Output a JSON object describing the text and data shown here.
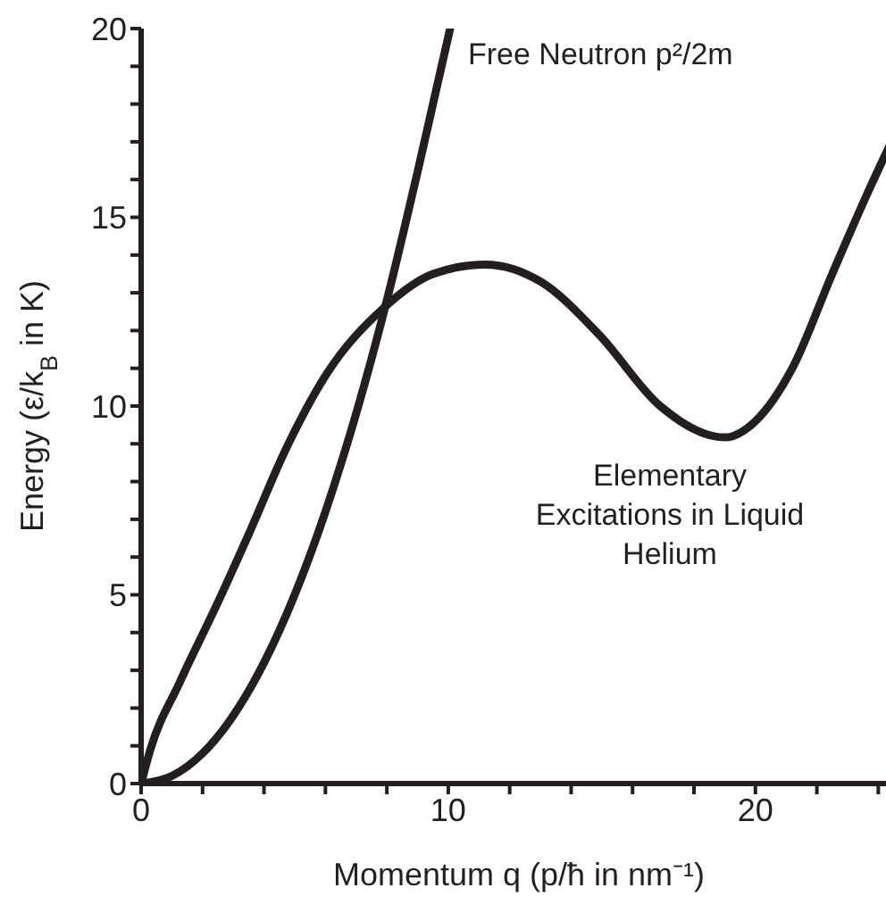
{
  "chart_data": {
    "type": "line",
    "xlabel": "Momentum q (p/ħ in nm⁻¹)",
    "ylabel": "Energy (ε/k$_{B}$ in K)",
    "xlim": [
      0,
      24.6
    ],
    "ylim": [
      0,
      20
    ],
    "xticks": [
      0,
      {
        "value": 2,
        "label": null
      },
      {
        "value": 4,
        "label": null
      },
      {
        "value": 6,
        "label": null
      },
      {
        "value": 8,
        "label": null
      },
      10,
      {
        "value": 12,
        "label": null
      },
      {
        "value": 14,
        "label": null
      },
      {
        "value": 16,
        "label": null
      },
      {
        "value": 18,
        "label": null
      },
      20,
      {
        "value": 22,
        "label": null
      },
      {
        "value": 24,
        "label": null
      }
    ],
    "yticks": [
      0,
      {
        "value": 1,
        "label": null
      },
      {
        "value": 2,
        "label": null
      },
      {
        "value": 3,
        "label": null
      },
      {
        "value": 4,
        "label": null
      },
      5,
      {
        "value": 6,
        "label": null
      },
      {
        "value": 7,
        "label": null
      },
      {
        "value": 8,
        "label": null
      },
      {
        "value": 9,
        "label": null
      },
      10,
      {
        "value": 11,
        "label": null
      },
      {
        "value": 12,
        "label": null
      },
      {
        "value": 13,
        "label": null
      },
      {
        "value": 14,
        "label": null
      },
      15,
      {
        "value": 16,
        "label": null
      },
      {
        "value": 17,
        "label": null
      },
      {
        "value": 18,
        "label": null
      },
      {
        "value": 19,
        "label": null
      },
      20
    ],
    "grid": false,
    "legend": false,
    "marker": "none",
    "line_style": "solid",
    "series": [
      {
        "name": "Free Neutron p²/2m",
        "color": "#231f20",
        "x": [
          0,
          1,
          2,
          3,
          4,
          5,
          6,
          7,
          8,
          9,
          10.06
        ],
        "values": [
          0,
          0.2,
          0.8,
          1.8,
          3.2,
          5,
          7.2,
          9.8,
          12.8,
          16.2,
          20
        ]
      },
      {
        "name": "Elementary Excitations in Liquid Helium",
        "color": "#231f20",
        "x": [
          0,
          0.3,
          1.24,
          2.5,
          3.5,
          4.76,
          6,
          7.9,
          9.5,
          11.2,
          13,
          14.9,
          16.9,
          19,
          20,
          21.2,
          22.5,
          23.6,
          24.6
        ],
        "values": [
          0,
          0.9,
          2.65,
          4.8,
          6.6,
          8.94,
          10.8,
          12.6,
          13.5,
          13.75,
          13.3,
          11.9,
          10,
          9.17,
          9.6,
          11,
          13.5,
          15.55,
          17.3
        ]
      }
    ]
  }
}
